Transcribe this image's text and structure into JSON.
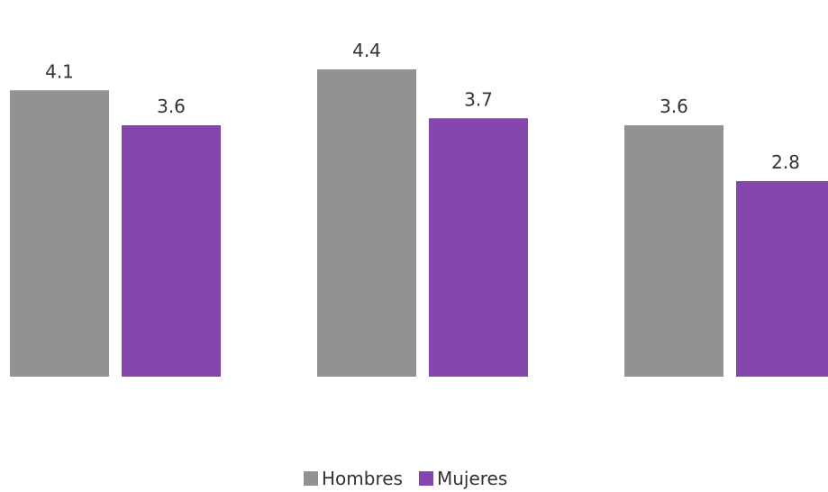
{
  "chart_data": {
    "type": "bar",
    "categories": [
      "",
      "",
      ""
    ],
    "series": [
      {
        "name": "Hombres",
        "values": [
          4.1,
          4.4,
          3.6
        ],
        "color": "#929292"
      },
      {
        "name": "Mujeres",
        "values": [
          3.6,
          3.7,
          2.8
        ],
        "color": "#8546AE"
      }
    ],
    "data_labels": {
      "Hombres": [
        "4.1",
        "4.4",
        "3.6"
      ],
      "Mujeres": [
        "3.6",
        "3.7",
        "2.8"
      ]
    },
    "ylim": [
      0,
      4.5
    ],
    "grid": false,
    "axes_visible": false,
    "legend_position": "bottom"
  },
  "legend": {
    "items": [
      {
        "label": "Hombres",
        "color": "#929292"
      },
      {
        "label": "Mujeres",
        "color": "#8546AE"
      }
    ]
  }
}
